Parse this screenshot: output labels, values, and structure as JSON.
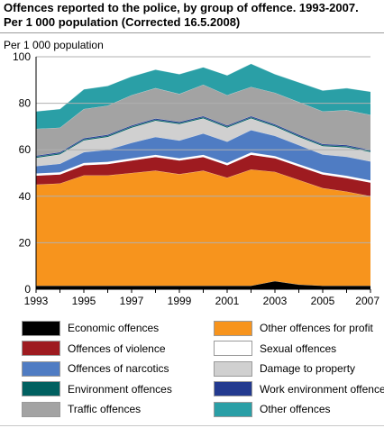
{
  "title_line1": "Offences reported to the police, by group of offence. 1993-2007.",
  "title_line2": "Per 1 000 population (Corrected 16.5.2008)",
  "chart_data": {
    "type": "area",
    "stacked": true,
    "ylabel": "Per 1 000 population",
    "ylim": [
      0,
      100
    ],
    "yticks": [
      0,
      20,
      40,
      60,
      80,
      100
    ],
    "xticks": [
      "1993",
      "1995",
      "1997",
      "1999",
      "2001",
      "2003",
      "2005",
      "2007"
    ],
    "x": [
      1993,
      1994,
      1995,
      1996,
      1997,
      1998,
      1999,
      2000,
      2001,
      2002,
      2003,
      2004,
      2005,
      2006,
      2007
    ],
    "grid": true,
    "series": [
      {
        "name": "Economic offences",
        "color": "#000000",
        "values": [
          1.5,
          1.5,
          1.5,
          1.5,
          1.5,
          1.5,
          1.5,
          1.5,
          1.5,
          1.5,
          3.5,
          2.0,
          1.5,
          1.5,
          1.5
        ]
      },
      {
        "name": "Other offences for profit",
        "color": "#f7941d",
        "values": [
          43.5,
          44.0,
          47.5,
          47.5,
          48.5,
          49.5,
          48.0,
          49.5,
          46.5,
          50.0,
          47.0,
          45.0,
          42.0,
          40.5,
          38.5
        ]
      },
      {
        "name": "Offences of violence",
        "color": "#9e1b20",
        "values": [
          4.0,
          4.0,
          4.5,
          5.0,
          5.5,
          6.0,
          6.0,
          6.0,
          5.5,
          6.5,
          6.0,
          6.0,
          6.0,
          6.0,
          6.0
        ]
      },
      {
        "name": "Sexual offences",
        "color": "#ffffff",
        "values": [
          0.8,
          0.8,
          0.8,
          0.8,
          0.8,
          0.8,
          0.8,
          0.8,
          0.8,
          0.8,
          0.8,
          0.8,
          0.8,
          0.8,
          0.8
        ]
      },
      {
        "name": "Offences of narcotics",
        "color": "#4f7cc3",
        "values": [
          3.2,
          3.7,
          4.7,
          5.2,
          6.7,
          7.7,
          7.7,
          9.2,
          9.2,
          9.7,
          8.7,
          8.2,
          7.7,
          8.2,
          8.2
        ]
      },
      {
        "name": "Damage to property",
        "color": "#d0d0d0",
        "values": [
          3.5,
          4.0,
          5.0,
          5.5,
          6.5,
          7.0,
          7.0,
          6.5,
          6.0,
          5.0,
          4.0,
          3.5,
          3.5,
          4.0,
          4.0
        ]
      },
      {
        "name": "Environment offences",
        "color": "#006060",
        "values": [
          0.5,
          0.5,
          0.5,
          0.5,
          0.5,
          0.5,
          0.5,
          0.5,
          0.5,
          0.5,
          0.5,
          0.5,
          0.5,
          0.5,
          0.5
        ]
      },
      {
        "name": "Work environment offences",
        "color": "#233a8f",
        "values": [
          0.5,
          0.5,
          0.5,
          0.5,
          0.5,
          0.5,
          0.5,
          0.5,
          0.5,
          0.5,
          0.5,
          0.5,
          0.5,
          0.5,
          0.5
        ]
      },
      {
        "name": "Traffic offences",
        "color": "#a3a3a3",
        "values": [
          11.5,
          10.5,
          12.5,
          12.5,
          13.0,
          13.0,
          12.0,
          13.5,
          13.0,
          12.5,
          13.5,
          14.0,
          14.0,
          15.0,
          15.0
        ]
      },
      {
        "name": "Other offences",
        "color": "#2a9fa6",
        "values": [
          7.5,
          8.0,
          8.5,
          8.5,
          8.0,
          8.0,
          8.5,
          7.5,
          8.5,
          10.0,
          8.0,
          8.5,
          9.0,
          9.5,
          10.0
        ]
      }
    ]
  },
  "legend_order": [
    "Economic offences",
    "Other offences for profit",
    "Offences of violence",
    "Sexual offences",
    "Offences of narcotics",
    "Damage to property",
    "Environment offences",
    "Work environment offences",
    "Traffic offences",
    "Other offences"
  ]
}
